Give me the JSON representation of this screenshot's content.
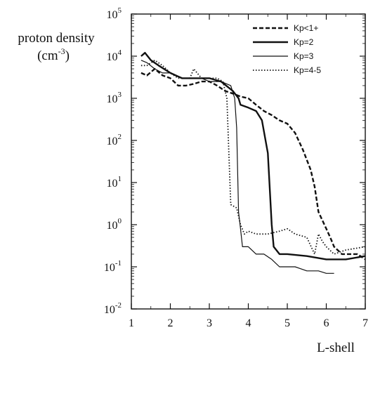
{
  "chart_data": {
    "type": "line",
    "ylabel_line1": "proton density",
    "ylabel_line2_base": "(cm",
    "ylabel_line2_exp": "-3",
    "ylabel_line2_close": ")",
    "xlabel": "L-shell",
    "xlim": [
      1,
      7
    ],
    "ylim": [
      0.01,
      100000
    ],
    "yscale": "log",
    "x_ticks": [
      "1",
      "2",
      "3",
      "4",
      "5",
      "6",
      "7"
    ],
    "y_ticks": [
      {
        "base": "10",
        "exp": "5"
      },
      {
        "base": "10",
        "exp": "4"
      },
      {
        "base": "10",
        "exp": "3"
      },
      {
        "base": "10",
        "exp": "2"
      },
      {
        "base": "10",
        "exp": "1"
      },
      {
        "base": "10",
        "exp": "0"
      },
      {
        "base": "10",
        "exp": "-1"
      },
      {
        "base": "10",
        "exp": "-2"
      }
    ],
    "legend_position": "top-right",
    "series": [
      {
        "name": "Kp<1+",
        "style": "dashed",
        "x": [
          1.25,
          1.4,
          1.6,
          1.8,
          2.0,
          2.2,
          2.4,
          2.6,
          2.8,
          3.0,
          3.2,
          3.4,
          3.6,
          3.8,
          4.0,
          4.2,
          4.4,
          4.6,
          4.8,
          5.0,
          5.2,
          5.4,
          5.6,
          5.7,
          5.8,
          6.0,
          6.1,
          6.2,
          6.4,
          6.6,
          6.8,
          7.0
        ],
        "y": [
          4000,
          3500,
          5000,
          3500,
          3000,
          2000,
          2000,
          2200,
          2500,
          2500,
          2000,
          1500,
          1300,
          1100,
          1000,
          700,
          500,
          400,
          300,
          250,
          150,
          60,
          20,
          8,
          2,
          0.8,
          0.5,
          0.3,
          0.2,
          0.2,
          0.2,
          0.15
        ]
      },
      {
        "name": "Kp=2",
        "style": "solid-thick",
        "x": [
          1.25,
          1.35,
          1.5,
          1.7,
          2.0,
          2.3,
          2.6,
          2.8,
          3.0,
          3.3,
          3.6,
          3.75,
          3.8,
          4.0,
          4.2,
          4.35,
          4.5,
          4.6,
          4.65,
          4.8,
          5.0,
          5.5,
          6.0,
          6.2,
          6.5,
          7.0
        ],
        "y": [
          10000,
          12000,
          8000,
          6000,
          4000,
          3000,
          3000,
          3000,
          3000,
          2500,
          1500,
          1000,
          700,
          600,
          500,
          300,
          50,
          1,
          0.3,
          0.2,
          0.2,
          0.18,
          0.15,
          0.15,
          0.15,
          0.18
        ]
      },
      {
        "name": "Kp=3",
        "style": "solid-thin",
        "x": [
          1.25,
          1.4,
          1.6,
          1.8,
          2.0,
          2.3,
          2.6,
          2.8,
          3.0,
          3.3,
          3.55,
          3.65,
          3.7,
          3.75,
          3.8,
          3.85,
          4.0,
          4.2,
          4.4,
          4.6,
          4.8,
          5.0,
          5.2,
          5.5,
          5.7,
          5.8,
          6.0,
          6.2
        ],
        "y": [
          8000,
          7000,
          5000,
          4000,
          4000,
          3000,
          3000,
          3000,
          2500,
          2500,
          2000,
          1000,
          200,
          2,
          0.8,
          0.3,
          0.3,
          0.2,
          0.2,
          0.15,
          0.1,
          0.1,
          0.1,
          0.08,
          0.08,
          0.08,
          0.07,
          0.07
        ]
      },
      {
        "name": "Kp=4-5",
        "style": "dotted",
        "x": [
          1.25,
          1.4,
          1.6,
          1.8,
          2.0,
          2.2,
          2.5,
          2.6,
          2.8,
          3.0,
          3.2,
          3.35,
          3.45,
          3.5,
          3.55,
          3.7,
          3.8,
          3.9,
          4.0,
          4.2,
          4.5,
          4.8,
          5.0,
          5.2,
          5.5,
          5.7,
          5.8,
          5.9,
          6.0,
          6.2,
          6.5,
          7.0
        ],
        "y": [
          6000,
          6000,
          8000,
          6000,
          4000,
          3000,
          3000,
          5000,
          3000,
          3000,
          3000,
          2500,
          1000,
          50,
          3,
          2.5,
          1,
          0.6,
          0.7,
          0.6,
          0.6,
          0.7,
          0.8,
          0.6,
          0.5,
          0.2,
          0.6,
          0.4,
          0.3,
          0.2,
          0.25,
          0.3
        ]
      }
    ]
  }
}
